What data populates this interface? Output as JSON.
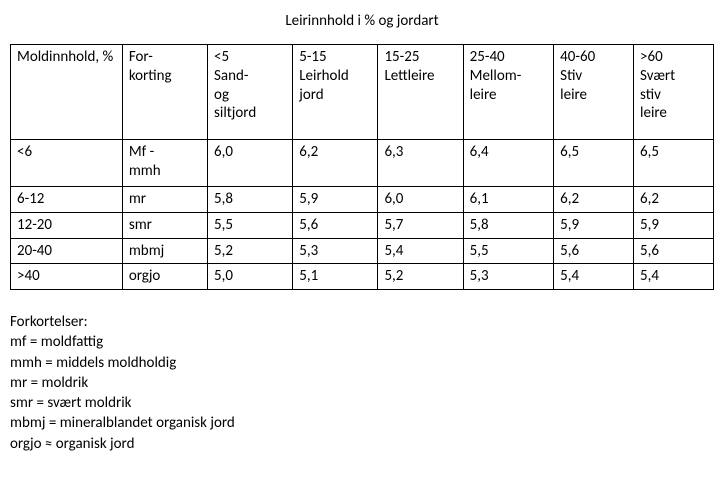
{
  "title": "Leirinnhold i % og jordart",
  "table": {
    "headers": [
      "Moldinnhold, %",
      "For-\nkorting",
      "<5\nSand-\nog\nsiltjord",
      "5-15\nLeirhold\njord",
      "15-25\nLettleire",
      "25-40\nMellom-\nleire",
      "40-60\nStiv\nleire",
      ">60\nSvært\nstiv\nleire"
    ],
    "rows": [
      {
        "label": "<6",
        "abbr": "Mf -\nmmh",
        "v": [
          "6,0",
          "6,2",
          "6,3",
          "6,4",
          "6,5",
          "6,5"
        ]
      },
      {
        "label": "6-12",
        "abbr": "mr",
        "v": [
          "5,8",
          "5,9",
          "6,0",
          "6,1",
          "6,2",
          "6,2"
        ]
      },
      {
        "label": "12-20",
        "abbr": "smr",
        "v": [
          "5,5",
          "5,6",
          "5,7",
          "5,8",
          "5,9",
          "5,9"
        ]
      },
      {
        "label": "20-40",
        "abbr": "mbmj",
        "v": [
          "5,2",
          "5,3",
          "5,4",
          "5,5",
          "5,6",
          "5,6"
        ]
      },
      {
        "label": ">40",
        "abbr": "orgjo",
        "v": [
          "5,0",
          "5,1",
          "5,2",
          "5,3",
          "5,4",
          "5,4"
        ]
      }
    ]
  },
  "legend": {
    "title": "Forkortelser:",
    "lines": [
      "mf = moldfattig",
      "mmh = middels moldholdig",
      "mr = moldrik",
      "smr = svært moldrik",
      "mbmj = mineralblandet organisk jord",
      "orgjo ≈ organisk jord"
    ]
  }
}
